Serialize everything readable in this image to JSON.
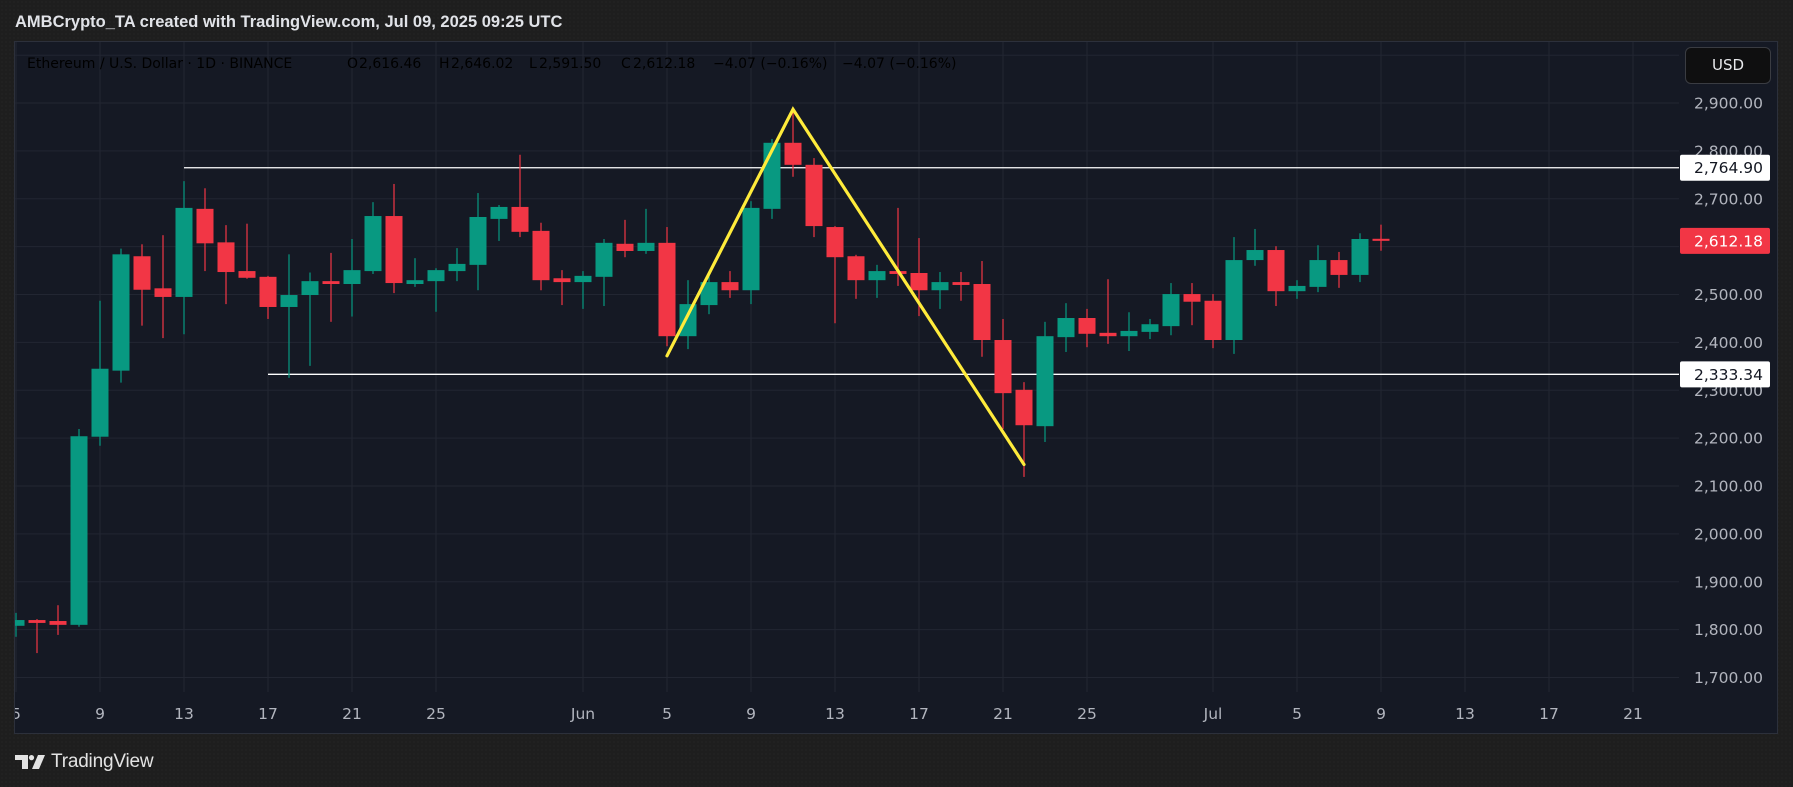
{
  "header": {
    "title": "AMBCrypto_TA created with TradingView.com, Jul 09, 2025 09:25 UTC"
  },
  "legend": {
    "symbol": "Ethereum / U.S. Dollar · 1D · BINANCE",
    "open_label": "O",
    "open": "2,616.46",
    "high_label": "H",
    "high": "2,646.02",
    "low_label": "L",
    "low": "2,591.50",
    "close_label": "C",
    "close": "2,612.18",
    "change": "−4.07 (−0.16%)",
    "change_2": "−4.07 (−0.16%)"
  },
  "price_axis": {
    "currency_button": "USD",
    "ticks": [
      {
        "value": 2900,
        "label": "2,900.00"
      },
      {
        "value": 2800,
        "label": "2,800.00"
      },
      {
        "value": 2700,
        "label": "2,700.00"
      },
      {
        "value": 2500,
        "label": "2,500.00"
      },
      {
        "value": 2400,
        "label": "2,400.00"
      },
      {
        "value": 2300,
        "label": "2,300.00"
      },
      {
        "value": 2200,
        "label": "2,200.00"
      },
      {
        "value": 2100,
        "label": "2,100.00"
      },
      {
        "value": 2000,
        "label": "2,000.00"
      },
      {
        "value": 1900,
        "label": "1,900.00"
      },
      {
        "value": 1800,
        "label": "1,800.00"
      },
      {
        "value": 1700,
        "label": "1,700.00"
      }
    ]
  },
  "time_axis": {
    "ticks": [
      {
        "label": "5",
        "index": 0
      },
      {
        "label": "9",
        "index": 4
      },
      {
        "label": "13",
        "index": 8
      },
      {
        "label": "17",
        "index": 12
      },
      {
        "label": "21",
        "index": 16
      },
      {
        "label": "25",
        "index": 20
      },
      {
        "label": "Jun",
        "index": 27
      },
      {
        "label": "5",
        "index": 31
      },
      {
        "label": "9",
        "index": 35
      },
      {
        "label": "13",
        "index": 39
      },
      {
        "label": "17",
        "index": 43
      },
      {
        "label": "21",
        "index": 47
      },
      {
        "label": "25",
        "index": 51
      },
      {
        "label": "Jul",
        "index": 57
      },
      {
        "label": "5",
        "index": 61
      },
      {
        "label": "9",
        "index": 65
      },
      {
        "label": "13",
        "index": 69
      },
      {
        "label": "17",
        "index": 73
      },
      {
        "label": "21",
        "index": 77
      }
    ]
  },
  "markers": {
    "resistance": {
      "value": 2764.9,
      "label": "2,764.90",
      "start_date": "May 13"
    },
    "support": {
      "value": 2333.34,
      "label": "2,333.34",
      "start_date": "May 17"
    },
    "last_price": {
      "value": 2612.18,
      "label": "2,612.18"
    }
  },
  "branding": {
    "logo_text": "TradingView"
  },
  "colors": {
    "up": "#089981",
    "down": "#f23645",
    "drawing": "#ffeb3b",
    "level_line": "#ffffff",
    "last_price_bg": "#f23645"
  },
  "chart_data": {
    "type": "candlestick",
    "title": "Ethereum / U.S. Dollar · 1D · BINANCE",
    "xlabel": "",
    "ylabel": "",
    "currency": "USD",
    "ylim": [
      1670,
      3020
    ],
    "grid": true,
    "legend_position": "top-left",
    "columns": [
      "date",
      "open",
      "high",
      "low",
      "close"
    ],
    "candles": [
      [
        "May 5",
        1808,
        1835,
        1785,
        1820
      ],
      [
        "May 6",
        1820,
        1822,
        1751,
        1814
      ],
      [
        "May 7",
        1818,
        1851,
        1789,
        1810
      ],
      [
        "May 8",
        1810,
        2219,
        1806,
        2204
      ],
      [
        "May 9",
        2203,
        2487,
        2184,
        2345
      ],
      [
        "May 10",
        2341,
        2596,
        2316,
        2584
      ],
      [
        "May 11",
        2580,
        2605,
        2435,
        2510
      ],
      [
        "May 12",
        2513,
        2624,
        2409,
        2495
      ],
      [
        "May 13",
        2495,
        2737,
        2417,
        2681
      ],
      [
        "May 14",
        2679,
        2722,
        2549,
        2607
      ],
      [
        "May 15",
        2609,
        2645,
        2480,
        2547
      ],
      [
        "May 16",
        2549,
        2648,
        2533,
        2535
      ],
      [
        "May 17",
        2537,
        2539,
        2449,
        2474
      ],
      [
        "May 18",
        2474,
        2584,
        2326,
        2499
      ],
      [
        "May 19",
        2499,
        2546,
        2351,
        2528
      ],
      [
        "May 20",
        2528,
        2587,
        2443,
        2522
      ],
      [
        "May 21",
        2522,
        2616,
        2454,
        2551
      ],
      [
        "May 22",
        2549,
        2693,
        2543,
        2664
      ],
      [
        "May 23",
        2664,
        2731,
        2503,
        2524
      ],
      [
        "May 24",
        2522,
        2576,
        2516,
        2530
      ],
      [
        "May 25",
        2528,
        2555,
        2464,
        2551
      ],
      [
        "May 26",
        2549,
        2597,
        2528,
        2564
      ],
      [
        "May 27",
        2562,
        2712,
        2509,
        2662
      ],
      [
        "May 28",
        2658,
        2687,
        2612,
        2683
      ],
      [
        "May 29",
        2683,
        2792,
        2620,
        2631
      ],
      [
        "May 30",
        2633,
        2650,
        2509,
        2530
      ],
      [
        "May 31",
        2534,
        2551,
        2478,
        2526
      ],
      [
        "Jun 1",
        2526,
        2549,
        2470,
        2539
      ],
      [
        "Jun 2",
        2537,
        2616,
        2476,
        2608
      ],
      [
        "Jun 3",
        2606,
        2656,
        2578,
        2591
      ],
      [
        "Jun 4",
        2591,
        2679,
        2585,
        2608
      ],
      [
        "Jun 5",
        2608,
        2641,
        2392,
        2413
      ],
      [
        "Jun 6",
        2413,
        2530,
        2386,
        2480
      ],
      [
        "Jun 7",
        2478,
        2543,
        2459,
        2526
      ],
      [
        "Jun 8",
        2526,
        2549,
        2493,
        2509
      ],
      [
        "Jun 9",
        2509,
        2695,
        2480,
        2681
      ],
      [
        "Jun 10",
        2679,
        2825,
        2658,
        2817
      ],
      [
        "Jun 11",
        2817,
        2886,
        2746,
        2771
      ],
      [
        "Jun 12",
        2771,
        2785,
        2620,
        2643
      ],
      [
        "Jun 13",
        2641,
        2643,
        2440,
        2578
      ],
      [
        "Jun 14",
        2580,
        2583,
        2491,
        2530
      ],
      [
        "Jun 15",
        2530,
        2562,
        2493,
        2549
      ],
      [
        "Jun 16",
        2549,
        2681,
        2518,
        2543
      ],
      [
        "Jun 17",
        2545,
        2618,
        2455,
        2509
      ],
      [
        "Jun 18",
        2509,
        2547,
        2470,
        2526
      ],
      [
        "Jun 19",
        2526,
        2547,
        2487,
        2520
      ],
      [
        "Jun 20",
        2522,
        2570,
        2370,
        2405
      ],
      [
        "Jun 21",
        2405,
        2449,
        2219,
        2294
      ],
      [
        "Jun 22",
        2301,
        2317,
        2119,
        2227
      ],
      [
        "Jun 23",
        2225,
        2443,
        2192,
        2413
      ],
      [
        "Jun 24",
        2411,
        2482,
        2380,
        2451
      ],
      [
        "Jun 25",
        2451,
        2470,
        2390,
        2418
      ],
      [
        "Jun 26",
        2420,
        2532,
        2397,
        2413
      ],
      [
        "Jun 27",
        2413,
        2463,
        2382,
        2424
      ],
      [
        "Jun 28",
        2422,
        2449,
        2407,
        2438
      ],
      [
        "Jun 29",
        2434,
        2524,
        2415,
        2501
      ],
      [
        "Jun 30",
        2501,
        2524,
        2436,
        2485
      ],
      [
        "Jul 1",
        2487,
        2501,
        2388,
        2405
      ],
      [
        "Jul 2",
        2405,
        2620,
        2376,
        2572
      ],
      [
        "Jul 3",
        2572,
        2637,
        2560,
        2593
      ],
      [
        "Jul 4",
        2593,
        2601,
        2476,
        2507
      ],
      [
        "Jul 5",
        2507,
        2530,
        2491,
        2518
      ],
      [
        "Jul 6",
        2516,
        2603,
        2505,
        2572
      ],
      [
        "Jul 7",
        2572,
        2589,
        2514,
        2541
      ],
      [
        "Jul 8",
        2541,
        2628,
        2526,
        2616
      ],
      [
        "Jul 9",
        2616.46,
        2646.02,
        2591.5,
        2612.18
      ]
    ],
    "x_tick_labels": [
      "5",
      "9",
      "13",
      "17",
      "21",
      "25",
      "Jun",
      "5",
      "9",
      "13",
      "17",
      "21",
      "25",
      "Jul",
      "5",
      "9",
      "13",
      "17",
      "21"
    ],
    "y_tick_labels": [
      "2,900.00",
      "2,800.00",
      "2,700.00",
      "2,500.00",
      "2,400.00",
      "2,300.00",
      "2,200.00",
      "2,100.00",
      "2,000.00",
      "1,900.00",
      "1,800.00",
      "1,700.00"
    ],
    "horizontal_lines": [
      {
        "value": 2764.9,
        "label": "2,764.90",
        "from": "May 13"
      },
      {
        "value": 2333.34,
        "label": "2,333.34",
        "from": "May 17"
      }
    ],
    "last_price": 2612.18,
    "drawings": [
      {
        "type": "polyline",
        "color": "#ffeb3b",
        "points": [
          {
            "date": "Jun 5",
            "price": 2372
          },
          {
            "date": "Jun 11",
            "price": 2887
          },
          {
            "date": "Jun 22",
            "price": 2145
          }
        ]
      }
    ]
  }
}
